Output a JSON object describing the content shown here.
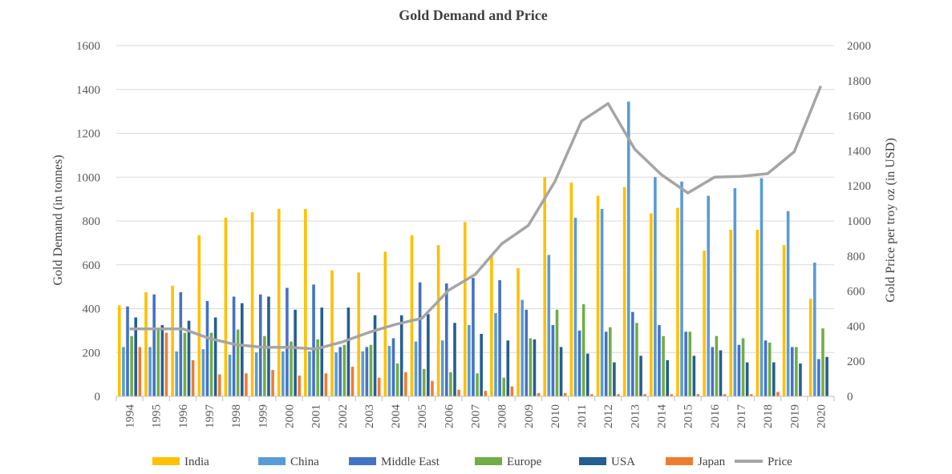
{
  "chart_data": {
    "type": "bar",
    "title": "Gold Demand and Price",
    "ylabel": "Gold Demand (in tonnes)",
    "y2label": "Gold Price per troy oz (in USD)",
    "ylim": [
      0,
      1600
    ],
    "y2lim": [
      0,
      2000
    ],
    "yticks": [
      "0",
      "200",
      "400",
      "600",
      "800",
      "1000",
      "1200",
      "1400",
      "1600"
    ],
    "y2ticks": [
      "0",
      "200",
      "400",
      "600",
      "800",
      "1000",
      "1200",
      "1400",
      "1600",
      "1800",
      "2000"
    ],
    "grid": true,
    "legend_position": "bottom",
    "categories": [
      "1994",
      "1995",
      "1996",
      "1997",
      "1998",
      "1999",
      "2000",
      "2001",
      "2002",
      "2003",
      "2004",
      "2005",
      "2006",
      "2007",
      "2008",
      "2009",
      "2010",
      "2011",
      "2012",
      "2013",
      "2014",
      "2015",
      "2016",
      "2017",
      "2018",
      "2019",
      "2020"
    ],
    "series": [
      {
        "name": "India",
        "color": "#FFC000",
        "values": [
          415,
          475,
          505,
          735,
          815,
          840,
          855,
          855,
          575,
          565,
          660,
          735,
          690,
          795,
          645,
          585,
          1000,
          975,
          915,
          955,
          835,
          860,
          665,
          760,
          760,
          690,
          445
        ]
      },
      {
        "name": "China",
        "color": "#5B9BD5",
        "values": [
          225,
          225,
          205,
          215,
          190,
          200,
          205,
          205,
          200,
          205,
          230,
          250,
          255,
          325,
          380,
          440,
          645,
          815,
          855,
          1345,
          1000,
          980,
          915,
          950,
          995,
          845,
          610
        ]
      },
      {
        "name": "Middle East",
        "color": "#4472C4",
        "values": [
          410,
          465,
          475,
          435,
          455,
          465,
          495,
          510,
          225,
          225,
          265,
          520,
          515,
          540,
          530,
          395,
          325,
          300,
          295,
          385,
          325,
          295,
          225,
          235,
          255,
          225,
          170
        ]
      },
      {
        "name": "Europe",
        "color": "#70AD47",
        "values": [
          275,
          310,
          290,
          290,
          305,
          275,
          250,
          260,
          235,
          235,
          150,
          125,
          110,
          105,
          85,
          265,
          395,
          420,
          315,
          335,
          275,
          295,
          275,
          265,
          245,
          225,
          310
        ]
      },
      {
        "name": "USA",
        "color": "#255E91",
        "values": [
          360,
          325,
          345,
          360,
          425,
          455,
          395,
          405,
          405,
          370,
          370,
          375,
          335,
          285,
          255,
          260,
          225,
          195,
          155,
          185,
          165,
          185,
          210,
          155,
          155,
          150,
          180
        ]
      },
      {
        "name": "Japan",
        "color": "#ED7D31",
        "values": [
          225,
          290,
          165,
          100,
          105,
          120,
          95,
          105,
          135,
          85,
          110,
          70,
          30,
          25,
          45,
          15,
          15,
          10,
          10,
          10,
          10,
          10,
          10,
          10,
          20,
          0,
          0
        ]
      }
    ],
    "line_series": {
      "name": "Price",
      "color": "#A5A5A5",
      "axis": "right",
      "values": [
        385,
        385,
        385,
        330,
        295,
        280,
        280,
        270,
        310,
        365,
        410,
        445,
        605,
        695,
        870,
        975,
        1225,
        1570,
        1670,
        1410,
        1265,
        1160,
        1250,
        1255,
        1270,
        1395,
        1770
      ]
    }
  }
}
